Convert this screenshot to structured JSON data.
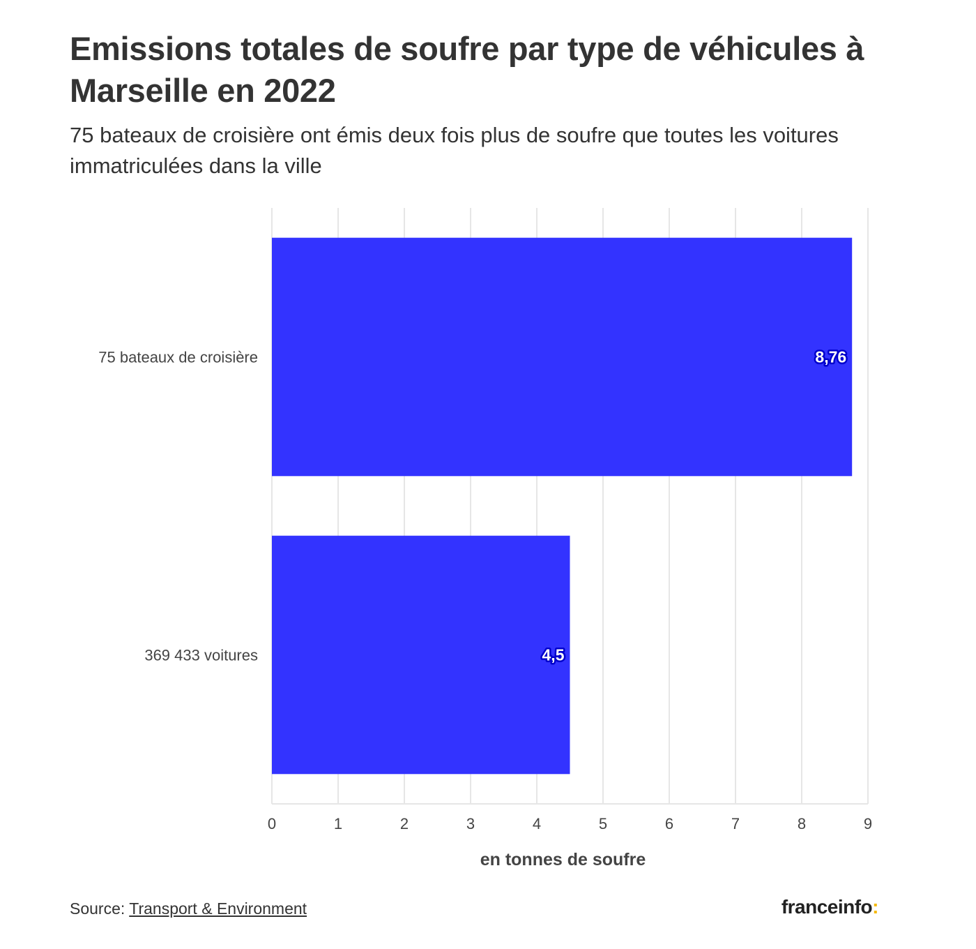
{
  "header": {
    "title": "Emissions totales de soufre par type de véhicules à Marseille en 2022",
    "subtitle": "75 bateaux de croisière ont émis deux fois plus de soufre que toutes les voitures immatriculées dans la ville"
  },
  "footer": {
    "source_prefix": "Source: ",
    "source_link": "Transport & Environment",
    "brand_name": "franceinfo",
    "brand_colon": ":"
  },
  "colors": {
    "bar": "#3333ff",
    "grid": "#e6e6e6",
    "brand_accent": "#f5b800"
  },
  "chart_data": {
    "type": "bar",
    "orientation": "horizontal",
    "categories": [
      "75 bateaux de croisière",
      "369 433 voitures"
    ],
    "values": [
      8.76,
      4.5
    ],
    "value_labels": [
      "8,76",
      "4,5"
    ],
    "xlabel": "en tonnes de soufre",
    "ylabel": "",
    "xlim": [
      0,
      9
    ],
    "xticks": [
      0,
      1,
      2,
      3,
      4,
      5,
      6,
      7,
      8,
      9
    ],
    "grid": "vertical",
    "legend": "none"
  }
}
